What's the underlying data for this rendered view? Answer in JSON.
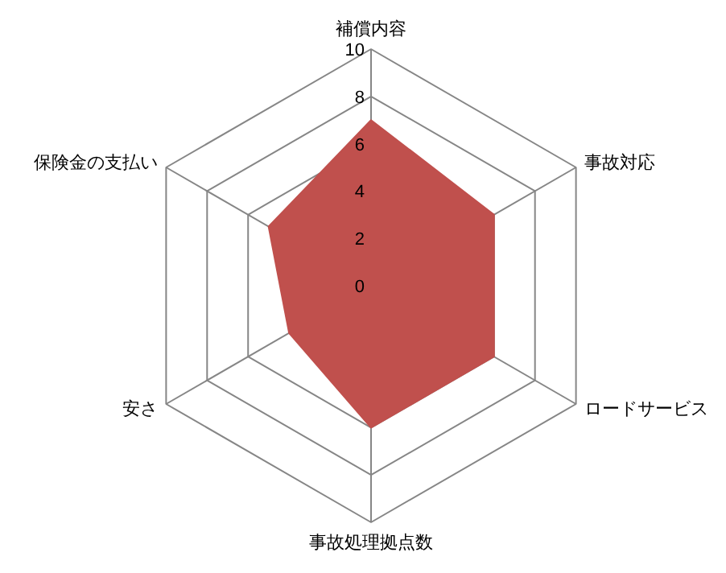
{
  "chart_data": {
    "type": "radar",
    "categories": [
      "補償内容",
      "事故対応",
      "ロードサービス",
      "事故処理拠点数",
      "安さ",
      "保険金の支払い"
    ],
    "series": [
      {
        "color": "#c0504d",
        "values": [
          7,
          6,
          6,
          6,
          4,
          5
        ]
      }
    ],
    "ylim": [
      0,
      10
    ],
    "yticks": [
      0,
      2,
      4,
      6,
      8,
      10
    ],
    "grid": true
  }
}
